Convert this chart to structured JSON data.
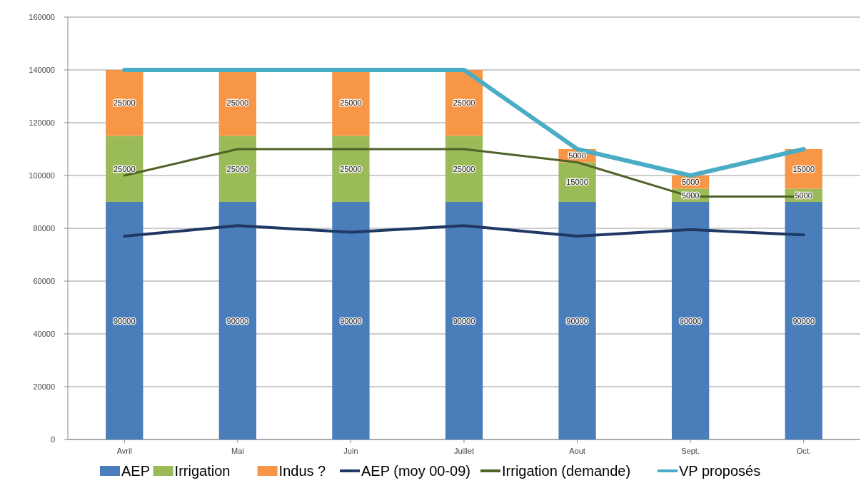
{
  "chart_data": {
    "type": "bar",
    "stacked": true,
    "categories": [
      "Avril",
      "Mai",
      "Juin",
      "Juillet",
      "Aout",
      "Sept.",
      "Oct."
    ],
    "series": [
      {
        "name": "AEP",
        "color": "#4a7ebb",
        "values": [
          90000,
          90000,
          90000,
          90000,
          90000,
          90000,
          90000
        ],
        "value_labels": [
          "90000",
          "90000",
          "90000",
          "90000",
          "90000",
          "90000",
          "90000"
        ]
      },
      {
        "name": "Irrigation",
        "color": "#9bbb59",
        "values": [
          25000,
          25000,
          25000,
          25000,
          15000,
          5000,
          5000
        ],
        "value_labels": [
          "25000",
          "25000",
          "25000",
          "25000",
          "15000",
          "5000",
          "5000"
        ]
      },
      {
        "name": "Indus ?",
        "color": "#f79646",
        "values": [
          25000,
          25000,
          25000,
          25000,
          5000,
          5000,
          15000
        ],
        "value_labels": [
          "25000",
          "25000",
          "25000",
          "25000",
          "5000",
          "5000",
          "15000"
        ]
      },
      {
        "name": "AEP (moy 00-09)",
        "type": "line",
        "color": "#1f3864",
        "values": [
          77000,
          81000,
          78500,
          81000,
          77000,
          79500,
          77500
        ]
      },
      {
        "name": "Irrigation (demande)",
        "type": "line",
        "color": "#4f6228",
        "values": [
          100000,
          110000,
          110000,
          110000,
          105000,
          92000,
          92000
        ]
      },
      {
        "name": "VP proposés",
        "type": "line",
        "color": "#4bacc6",
        "values": [
          140000,
          140000,
          140000,
          140000,
          110000,
          100000,
          110000
        ]
      }
    ],
    "ylim": [
      0,
      160000
    ],
    "yticks": [
      0,
      20000,
      40000,
      60000,
      80000,
      100000,
      120000,
      140000,
      160000
    ],
    "grid": "y",
    "legend": "bottom",
    "marker": "none",
    "line_style": "solid"
  }
}
